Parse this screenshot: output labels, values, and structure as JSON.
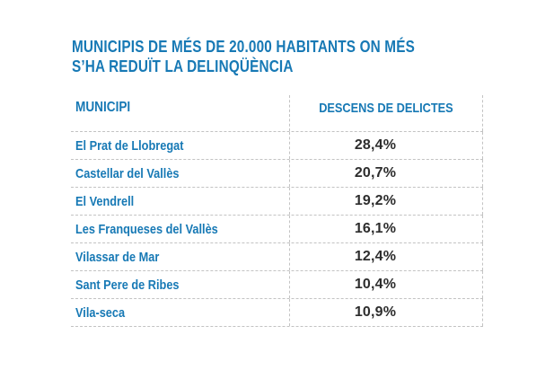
{
  "title": {
    "line1": "MUNICIPIS DE MÉS DE 20.000 HABITANTS ON MÉS",
    "line2": "S’HA REDUÏT LA DELINQÜÈNCIA"
  },
  "table": {
    "columns": [
      "MUNICIPI",
      "DESCENS DE DELICTES"
    ],
    "rows": [
      {
        "municipi": "El Prat de Llobregat",
        "descens": "28,4%"
      },
      {
        "municipi": "Castellar del Vallès",
        "descens": "20,7%"
      },
      {
        "municipi": "El Vendrell",
        "descens": "19,2%"
      },
      {
        "municipi": "Les Franqueses del Vallès",
        "descens": "16,1%"
      },
      {
        "municipi": "Vilassar de Mar",
        "descens": "12,4%"
      },
      {
        "municipi": "Sant Pere de Ribes",
        "descens": "10,4%"
      },
      {
        "municipi": "Vila-seca",
        "descens": "10,9%"
      }
    ]
  },
  "colors": {
    "accent_blue": "#1779b5",
    "value_text": "#2d2d2d",
    "grid_line": "#c3c3c3"
  },
  "chart_data": {
    "type": "table",
    "title": "MUNICIPIS DE MÉS DE 20.000 HABITANTS ON MÉS S’HA REDUÏT LA DELINQÜÈNCIA",
    "columns": [
      "MUNICIPI",
      "DESCENS DE DELICTES"
    ],
    "categories": [
      "El Prat de Llobregat",
      "Castellar del Vallès",
      "El Vendrell",
      "Les Franqueses del Vallès",
      "Vilassar de Mar",
      "Sant Pere de Ribes",
      "Vila-seca"
    ],
    "values_percent": [
      28.4,
      20.7,
      19.2,
      16.1,
      12.4,
      10.4,
      10.9
    ],
    "legend_position": "none",
    "grid": "dashed-separators"
  }
}
